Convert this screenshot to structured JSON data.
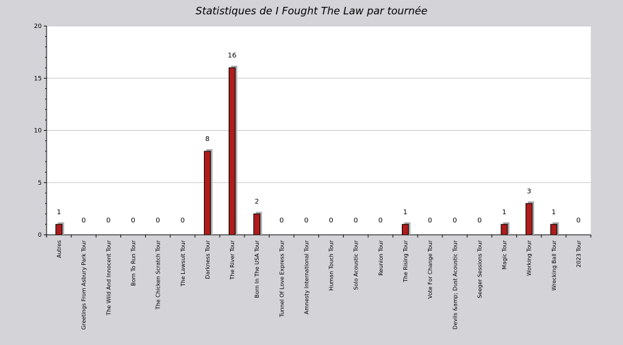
{
  "chart_data": {
    "type": "bar",
    "title": "Statistiques de I Fought The Law par tournée",
    "categories": [
      "Autres",
      "Greetings From Asbury Park Tour",
      "The Wild And Innocent Tour",
      "Born To Run Tour",
      "The Chicken Scratch Tour",
      "The Lawsuit Tour",
      "Darkness Tour",
      "The River Tour",
      "Born In The USA Tour",
      "Tunnel Of Love Express Tour",
      "Amnesty International Tour",
      "Human Touch Tour",
      "Solo Acoustic Tour",
      "Reunion Tour",
      "The Rising Tour",
      "Vote For Change Tour",
      "Devils &amp; Dust Acoustic Tour",
      "Seeger Sessions Tour",
      "Magic Tour",
      "Working Tour",
      "Wrecking Ball Tour",
      "2023 Tour"
    ],
    "values": [
      1,
      0,
      0,
      0,
      0,
      0,
      8,
      16,
      2,
      0,
      0,
      0,
      0,
      0,
      1,
      0,
      0,
      0,
      1,
      3,
      1,
      0
    ],
    "ylim": [
      0,
      20
    ],
    "yticks": [
      0,
      5,
      10,
      15,
      20
    ],
    "xlabel": "",
    "ylabel": "",
    "grid": true,
    "colors": {
      "background": "#d4d3d8",
      "plot_background": "#ffffff",
      "bar": "#b01c1c",
      "bar_border": "#000000",
      "bar_shadow": "#a9a9a9",
      "grid": "#c8c8c8",
      "axis": "#000000",
      "text": "#000000"
    }
  }
}
